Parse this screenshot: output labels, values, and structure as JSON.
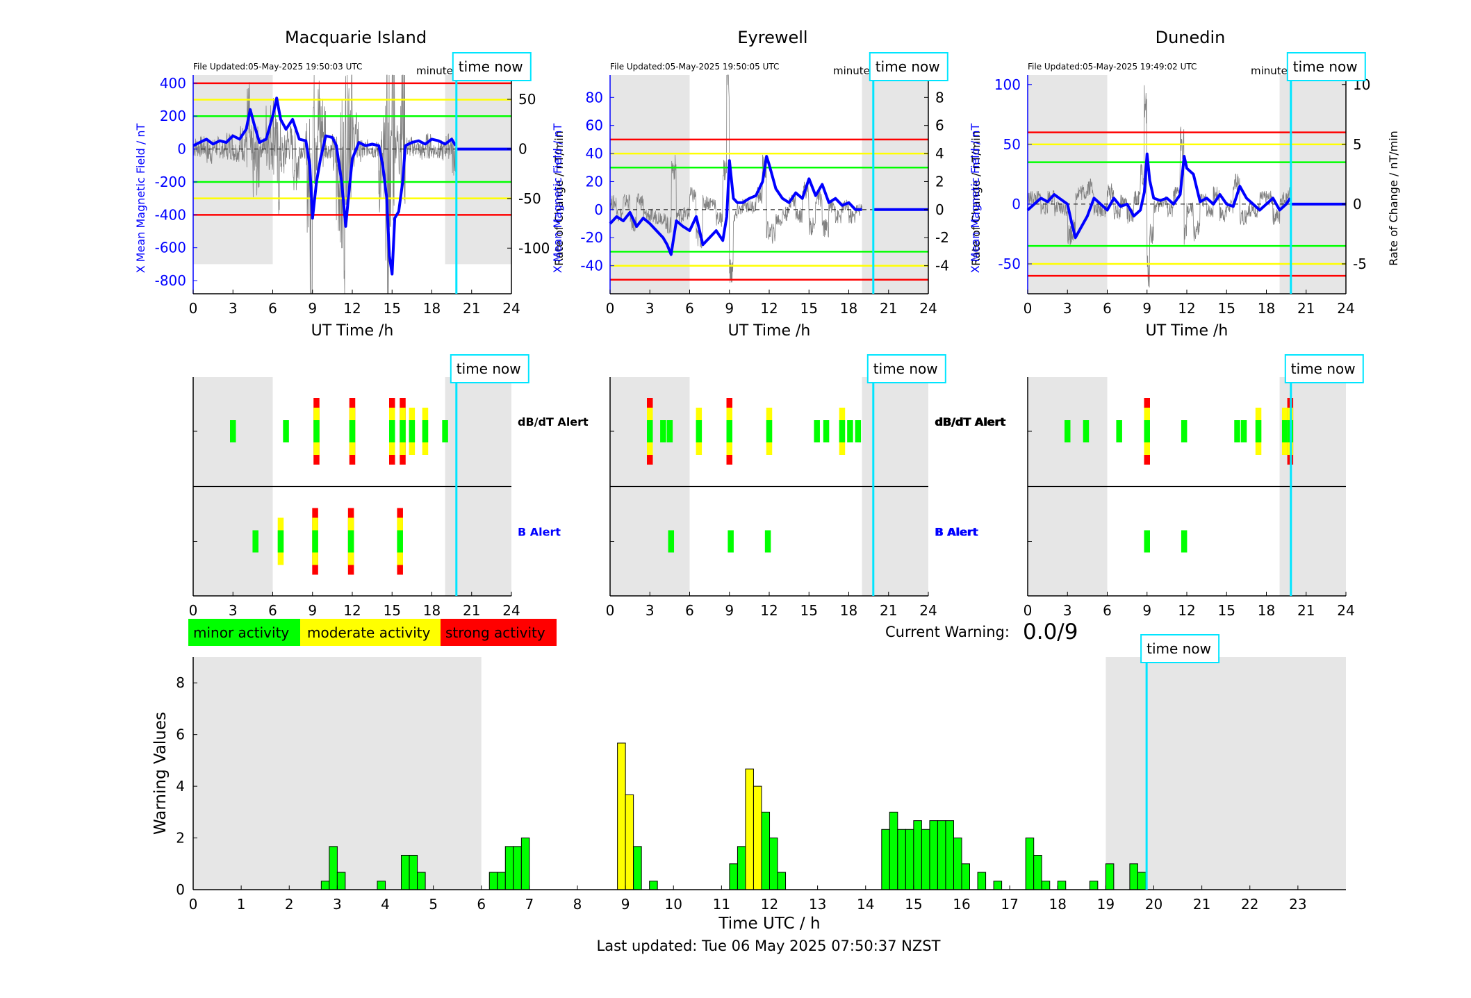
{
  "chart_data": [
    {
      "type": "line",
      "title": "Macquarie Island",
      "file_updated": "File Updated:05-May-2025 19:50:03 UTC",
      "resolution": "minute resolution",
      "xlabel": "UT Time /h",
      "ylabel": "X Mean Magnetic Field / nT",
      "ylabel_right": "Rate of Change / nT/min",
      "xlim": [
        0,
        24
      ],
      "xticks": [
        0,
        3,
        6,
        9,
        12,
        15,
        18,
        21,
        24
      ],
      "ylim": [
        -880,
        450
      ],
      "yticks": [
        400,
        200,
        0,
        -200,
        -400,
        -600,
        -800
      ],
      "ylim_right": [
        -146,
        74.5
      ],
      "yticks_right": [
        50,
        0,
        -50,
        -100
      ],
      "threshold_lines": [
        {
          "value": 400,
          "color": "#ff0000"
        },
        {
          "value": 300,
          "color": "#ffff00"
        },
        {
          "value": 200,
          "color": "#00ff00"
        },
        {
          "value": -200,
          "color": "#00ff00"
        },
        {
          "value": -300,
          "color": "#ffff00"
        },
        {
          "value": -400,
          "color": "#ff0000"
        }
      ],
      "night_shading": [
        [
          0,
          6,
          -700
        ],
        [
          19,
          24,
          -700
        ]
      ],
      "time_now": 19.85,
      "time_now_label": "time now",
      "series": [
        {
          "color": "#0000ff",
          "x": [
            0,
            0.5,
            1,
            1.5,
            2,
            2.5,
            3,
            3.5,
            4,
            4.3,
            4.6,
            5,
            5.5,
            6,
            6.3,
            6.6,
            7,
            7.5,
            8,
            8.5,
            8.8,
            9,
            9.3,
            9.6,
            10,
            10.5,
            10.8,
            11.2,
            11.5,
            11.7,
            12,
            12.5,
            13,
            13.5,
            14,
            14.3,
            14.6,
            14.8,
            15,
            15.2,
            15.5,
            15.8,
            16,
            16.5,
            17,
            17.5,
            18,
            18.5,
            19,
            19.5,
            19.8
          ],
          "values": [
            20,
            40,
            60,
            30,
            50,
            40,
            80,
            60,
            120,
            240,
            150,
            40,
            60,
            200,
            310,
            180,
            120,
            180,
            60,
            50,
            -100,
            -420,
            -200,
            -60,
            80,
            70,
            20,
            -200,
            -470,
            -300,
            -60,
            40,
            20,
            30,
            20,
            -100,
            -300,
            -650,
            -760,
            -420,
            -380,
            -200,
            20,
            40,
            50,
            30,
            60,
            50,
            30,
            60,
            20
          ]
        },
        {
          "color": "#0000ff",
          "x": [
            19.8,
            24
          ],
          "values": [
            0,
            0
          ]
        }
      ]
    },
    {
      "type": "line",
      "title": "Eyrewell",
      "file_updated": "File Updated:05-May-2025 19:50:05 UTC",
      "resolution": "minute resolution",
      "xlabel": "UT Time /h",
      "ylabel": "X Mean Magnetic Field / nT",
      "ylabel_right": "Rate of Change / nT/min",
      "xlim": [
        0,
        24
      ],
      "xticks": [
        0,
        3,
        6,
        9,
        12,
        15,
        18,
        21,
        24
      ],
      "ylim": [
        -60,
        96
      ],
      "yticks": [
        80,
        60,
        40,
        20,
        0,
        -20,
        -40
      ],
      "ylim_right": [
        -6,
        9.6
      ],
      "yticks_right": [
        8,
        6,
        4,
        2,
        0,
        -2,
        -4
      ],
      "threshold_lines": [
        {
          "value": 50,
          "color": "#ff0000"
        },
        {
          "value": 40,
          "color": "#ffff00"
        },
        {
          "value": 30,
          "color": "#00ff00"
        },
        {
          "value": -30,
          "color": "#00ff00"
        },
        {
          "value": -40,
          "color": "#ffff00"
        },
        {
          "value": -50,
          "color": "#ff0000"
        }
      ],
      "night_shading": [
        [
          0,
          6,
          null
        ],
        [
          19,
          24,
          null
        ]
      ],
      "time_now": 19.85,
      "time_now_label": "time now",
      "series": [
        {
          "color": "#0000ff",
          "x": [
            0,
            0.5,
            1,
            1.5,
            2,
            2.5,
            3,
            3.5,
            4,
            4.3,
            4.6,
            5,
            5.5,
            6,
            6.5,
            7,
            7.5,
            8,
            8.5,
            8.8,
            9,
            9.3,
            9.6,
            10,
            10.5,
            11,
            11.5,
            11.8,
            12,
            12.5,
            13,
            13.5,
            14,
            14.5,
            15,
            15.5,
            16,
            16.5,
            17,
            17.5,
            18,
            18.5,
            19
          ],
          "values": [
            -10,
            -5,
            -8,
            -2,
            -12,
            -6,
            -10,
            -15,
            -20,
            -25,
            -32,
            -8,
            -12,
            -15,
            -5,
            -25,
            -20,
            -15,
            -22,
            -5,
            35,
            8,
            5,
            5,
            8,
            10,
            20,
            38,
            32,
            15,
            8,
            5,
            12,
            8,
            22,
            10,
            18,
            5,
            8,
            3,
            5,
            0,
            0
          ]
        },
        {
          "color": "#0000ff",
          "x": [
            19.8,
            24
          ],
          "values": [
            0,
            0
          ]
        }
      ]
    },
    {
      "type": "line",
      "title": "Dunedin",
      "file_updated": "File Updated:05-May-2025 19:49:02 UTC",
      "resolution": "minute resolution",
      "xlabel": "UT Time /h",
      "ylabel": "X Mean Magnetic Field / nT",
      "ylabel_right": "Rate of Change / nT/min",
      "xlim": [
        0,
        24
      ],
      "xticks": [
        0,
        3,
        6,
        9,
        12,
        15,
        18,
        21,
        24
      ],
      "ylim": [
        -75,
        108
      ],
      "yticks": [
        100,
        50,
        0,
        -50
      ],
      "ylim_right": [
        -7.5,
        10.8
      ],
      "yticks_right": [
        10,
        5,
        0,
        -5
      ],
      "threshold_lines": [
        {
          "value": 60,
          "color": "#ff0000"
        },
        {
          "value": 50,
          "color": "#ffff00"
        },
        {
          "value": 35,
          "color": "#00ff00"
        },
        {
          "value": -35,
          "color": "#00ff00"
        },
        {
          "value": -50,
          "color": "#ffff00"
        },
        {
          "value": -60,
          "color": "#ff0000"
        }
      ],
      "night_shading": [
        [
          0,
          6,
          null
        ],
        [
          19,
          24,
          null
        ]
      ],
      "time_now": 19.85,
      "time_now_label": "time now",
      "series": [
        {
          "color": "#0000ff",
          "x": [
            0,
            0.5,
            1,
            1.5,
            2,
            2.5,
            3,
            3.3,
            3.6,
            4,
            4.5,
            5,
            5.5,
            6,
            6.5,
            7,
            7.5,
            8,
            8.5,
            8.8,
            9,
            9.2,
            9.5,
            10,
            10.5,
            11,
            11.5,
            11.8,
            12,
            12.5,
            13,
            13.5,
            14,
            14.5,
            15,
            15.5,
            16,
            16.5,
            17,
            17.5,
            18,
            18.5,
            19,
            19.5,
            19.8
          ],
          "values": [
            -5,
            0,
            5,
            2,
            8,
            4,
            0,
            -15,
            -28,
            -20,
            -10,
            5,
            0,
            -5,
            5,
            -2,
            0,
            -10,
            -5,
            10,
            42,
            20,
            5,
            3,
            5,
            0,
            8,
            40,
            30,
            25,
            2,
            5,
            0,
            8,
            0,
            -2,
            15,
            5,
            0,
            -5,
            0,
            5,
            -5,
            0,
            5
          ]
        },
        {
          "color": "#0000ff",
          "x": [
            19.8,
            24
          ],
          "values": [
            0,
            0
          ]
        }
      ]
    },
    {
      "type": "bar",
      "title": "",
      "panel": "Macquarie Island alerts",
      "rows": [
        {
          "label": "dB/dT Alert",
          "label_color": "#000000",
          "bars": [
            [
              3,
              1
            ],
            [
              7,
              1
            ],
            [
              9.3,
              3
            ],
            [
              12,
              3
            ],
            [
              15,
              3
            ],
            [
              15.8,
              3
            ],
            [
              16.5,
              2
            ],
            [
              17.5,
              2
            ],
            [
              19,
              1
            ]
          ]
        },
        {
          "label": "B Alert",
          "label_color": "#0000ff",
          "bars": [
            [
              4.7,
              1
            ],
            [
              6.6,
              2
            ],
            [
              9.2,
              3
            ],
            [
              11.9,
              3
            ],
            [
              15.6,
              3
            ]
          ]
        }
      ],
      "xlim": [
        0,
        24
      ],
      "xticks": [
        0,
        3,
        6,
        9,
        12,
        15,
        18,
        21,
        24
      ],
      "night_shading": [
        [
          0,
          6
        ],
        [
          19,
          24
        ]
      ],
      "time_now": 19.85,
      "time_now_label": "time now"
    },
    {
      "type": "bar",
      "title": "",
      "panel": "Eyrewell alerts",
      "rows": [
        {
          "label": "dB/dT Alert",
          "label_color": "#000000",
          "bars": [
            [
              3,
              3
            ],
            [
              4,
              1
            ],
            [
              4.5,
              1
            ],
            [
              6.7,
              2
            ],
            [
              9,
              3
            ],
            [
              12,
              2
            ],
            [
              15.6,
              1
            ],
            [
              16.3,
              1
            ],
            [
              17.5,
              2
            ],
            [
              18.1,
              1
            ],
            [
              18.7,
              1
            ]
          ]
        },
        {
          "label": "B Alert",
          "label_color": "#0000ff",
          "bars": [
            [
              4.6,
              1
            ],
            [
              9.1,
              1
            ],
            [
              11.9,
              1
            ]
          ]
        }
      ],
      "xlim": [
        0,
        24
      ],
      "xticks": [
        0,
        3,
        6,
        9,
        12,
        15,
        18,
        21,
        24
      ],
      "night_shading": [
        [
          0,
          6
        ],
        [
          19,
          24
        ]
      ],
      "time_now": 19.85,
      "time_now_label": "time now"
    },
    {
      "type": "bar",
      "title": "",
      "panel": "Dunedin alerts",
      "rows": [
        {
          "label": "dB/dT Alert",
          "label_color": "#000000",
          "bars": [
            [
              3,
              1
            ],
            [
              4.4,
              1
            ],
            [
              6.9,
              1
            ],
            [
              9,
              3
            ],
            [
              11.8,
              1
            ],
            [
              15.8,
              1
            ],
            [
              16.3,
              1
            ],
            [
              17.4,
              2
            ],
            [
              19.4,
              2
            ],
            [
              19.8,
              3
            ]
          ]
        },
        {
          "label": "B Alert",
          "label_color": "#0000ff",
          "bars": [
            [
              9,
              1
            ],
            [
              11.8,
              1
            ]
          ]
        }
      ],
      "xlim": [
        0,
        24
      ],
      "xticks": [
        0,
        3,
        6,
        9,
        12,
        15,
        18,
        21,
        24
      ],
      "night_shading": [
        [
          0,
          6
        ],
        [
          19,
          24
        ]
      ],
      "time_now": 19.85,
      "time_now_label": "time now"
    },
    {
      "type": "bar",
      "title": "",
      "xlabel": "Time UTC / h",
      "ylabel": "Warning Values",
      "xlim": [
        0,
        24
      ],
      "xticks": [
        0,
        1,
        2,
        3,
        4,
        5,
        6,
        7,
        8,
        9,
        10,
        11,
        12,
        13,
        14,
        15,
        16,
        17,
        18,
        19,
        20,
        21,
        22,
        23
      ],
      "ylim": [
        0,
        9
      ],
      "yticks": [
        0,
        2,
        4,
        6,
        8
      ],
      "night_shading": [
        [
          0,
          6
        ],
        [
          19,
          24
        ]
      ],
      "time_now": 19.85,
      "time_now_label": "time now",
      "bar_width_h": 0.1667,
      "x": [
        2.75,
        2.917,
        3.083,
        3.917,
        4.417,
        4.583,
        4.75,
        6.25,
        6.417,
        6.583,
        6.75,
        6.917,
        8.917,
        9.083,
        9.25,
        9.583,
        11.25,
        11.417,
        11.583,
        11.75,
        11.917,
        12.083,
        12.25,
        14.417,
        14.583,
        14.75,
        14.917,
        15.083,
        15.25,
        15.417,
        15.583,
        15.75,
        15.917,
        16.083,
        16.417,
        16.75,
        17.417,
        17.583,
        17.75,
        18.083,
        18.75,
        19.083,
        19.583,
        19.75
      ],
      "values": [
        0.33,
        1.67,
        0.67,
        0.33,
        1.33,
        1.33,
        0.67,
        0.67,
        0.67,
        1.67,
        1.67,
        2.0,
        5.67,
        3.67,
        1.67,
        0.33,
        1.0,
        1.67,
        4.67,
        4.0,
        3.0,
        2.0,
        0.67,
        2.33,
        3.0,
        2.33,
        2.33,
        2.67,
        2.33,
        2.67,
        2.67,
        2.67,
        2.0,
        1.0,
        0.67,
        0.33,
        2.0,
        1.33,
        0.33,
        0.33,
        0.33,
        1.0,
        1.0,
        0.67
      ],
      "colors": [
        "#00ff00",
        "#00ff00",
        "#00ff00",
        "#00ff00",
        "#00ff00",
        "#00ff00",
        "#00ff00",
        "#00ff00",
        "#00ff00",
        "#00ff00",
        "#00ff00",
        "#00ff00",
        "#ffff00",
        "#ffff00",
        "#00ff00",
        "#00ff00",
        "#00ff00",
        "#00ff00",
        "#ffff00",
        "#ffff00",
        "#00ff00",
        "#00ff00",
        "#00ff00",
        "#00ff00",
        "#00ff00",
        "#00ff00",
        "#00ff00",
        "#00ff00",
        "#00ff00",
        "#00ff00",
        "#00ff00",
        "#00ff00",
        "#00ff00",
        "#00ff00",
        "#00ff00",
        "#00ff00",
        "#00ff00",
        "#00ff00",
        "#00ff00",
        "#00ff00",
        "#00ff00",
        "#00ff00",
        "#00ff00",
        "#00ff00"
      ]
    }
  ],
  "legend": [
    {
      "label": "minor activity",
      "color": "#00ff00"
    },
    {
      "label": "moderate activity",
      "color": "#ffff00"
    },
    {
      "label": "strong activity",
      "color": "#ff0000"
    }
  ],
  "current_warning_label": "Current Warning:",
  "current_warning_value": "0.0/9",
  "last_updated": "Last updated: Tue 06 May 2025 07:50:37 NZST",
  "colors": {
    "night_shade": "#e6e6e6",
    "time_now_line": "#00e5ff",
    "field_line": "#0000ff",
    "rate_line": "#808080"
  }
}
